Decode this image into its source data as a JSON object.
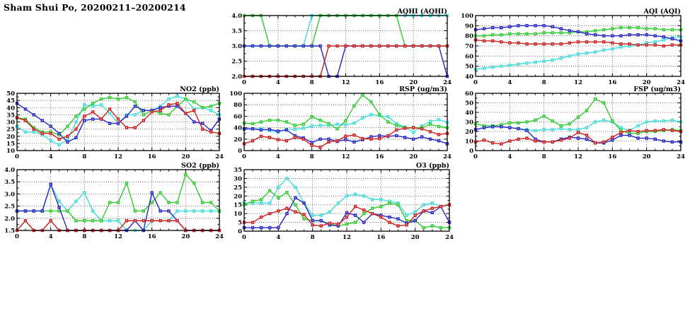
{
  "page_title": "Sham Shui Po, 20200211–20200214",
  "palette": {
    "blue": "#2828c8",
    "red": "#cc2222",
    "green": "#33cc33",
    "cyan": "#44dddd"
  },
  "chart_data": [
    {
      "id": "aqhi",
      "type": "line",
      "title": "AQHI (AQHI)",
      "ylim": [
        2.0,
        4.0
      ],
      "yticks": [
        2.0,
        2.5,
        3.0,
        3.5,
        4.0
      ],
      "ytick_labels": [
        "2.0",
        "2.5",
        "3.0",
        "3.5",
        "4.0"
      ],
      "xticks": [
        0,
        4,
        8,
        12,
        16,
        20,
        24
      ],
      "x_unit": "hour",
      "grid": true,
      "legend": "none",
      "series": [
        {
          "name": "cyan",
          "values": [
            3,
            3,
            3,
            3,
            3,
            3,
            3,
            3,
            4,
            4,
            4,
            4,
            4,
            4,
            4,
            4,
            4,
            4,
            4,
            4,
            4,
            4,
            4,
            4,
            4
          ]
        },
        {
          "name": "green",
          "values": [
            4,
            4,
            4,
            3,
            3,
            3,
            3,
            3,
            3,
            4,
            4,
            4,
            4,
            4,
            4,
            4,
            4,
            4,
            4,
            3,
            3,
            3,
            3,
            3,
            3
          ]
        },
        {
          "name": "blue",
          "values": [
            3,
            3,
            3,
            3,
            3,
            3,
            3,
            3,
            3,
            3,
            2,
            2,
            3,
            3,
            3,
            3,
            3,
            3,
            3,
            3,
            3,
            3,
            3,
            3,
            2
          ]
        },
        {
          "name": "red",
          "values": [
            2,
            2,
            2,
            2,
            2,
            2,
            2,
            2,
            2,
            2,
            3,
            3,
            3,
            3,
            3,
            3,
            3,
            3,
            3,
            3,
            3,
            3,
            3,
            3,
            3
          ]
        }
      ]
    },
    {
      "id": "aqi",
      "type": "line",
      "title": "AQI (AQI)",
      "ylim": [
        40,
        100
      ],
      "yticks": [
        40,
        50,
        60,
        70,
        80,
        90,
        100
      ],
      "ytick_labels": [
        "40",
        "50",
        "60",
        "70",
        "80",
        "90",
        "100"
      ],
      "xticks": [
        0,
        4,
        8,
        12,
        16,
        20,
        24
      ],
      "x_unit": "hour",
      "grid": true,
      "legend": "none",
      "series": [
        {
          "name": "cyan",
          "values": [
            47,
            48,
            49,
            50,
            51,
            52,
            53,
            54,
            55,
            56,
            58,
            60,
            62,
            63,
            64,
            66,
            67,
            69,
            70,
            71,
            73,
            74,
            76,
            78,
            79
          ]
        },
        {
          "name": "green",
          "values": [
            80,
            80,
            81,
            81,
            82,
            82,
            82,
            82,
            83,
            83,
            83,
            83,
            84,
            84,
            85,
            86,
            87,
            88,
            88,
            88,
            87,
            87,
            86,
            86,
            86
          ]
        },
        {
          "name": "blue",
          "values": [
            86,
            87,
            88,
            88,
            89,
            90,
            90,
            90,
            90,
            89,
            87,
            85,
            84,
            82,
            81,
            80,
            80,
            80,
            81,
            81,
            81,
            80,
            79,
            77,
            75
          ]
        },
        {
          "name": "red",
          "values": [
            76,
            75,
            75,
            74,
            73,
            73,
            72,
            72,
            72,
            72,
            72,
            73,
            74,
            74,
            74,
            74,
            73,
            72,
            72,
            71,
            71,
            71,
            70,
            71,
            71
          ]
        }
      ]
    },
    {
      "id": "no2",
      "type": "line",
      "title": "NO2 (ppb)",
      "ylim": [
        10,
        50
      ],
      "yticks": [
        10,
        15,
        20,
        25,
        30,
        35,
        40,
        45,
        50
      ],
      "ytick_labels": [
        "10",
        "15",
        "20",
        "25",
        "30",
        "35",
        "40",
        "45",
        "50"
      ],
      "xticks": [
        0,
        4,
        8,
        12,
        16,
        20,
        24
      ],
      "x_unit": "hour",
      "grid": true,
      "legend": "none",
      "series": [
        {
          "name": "cyan",
          "values": [
            27,
            23,
            23,
            21,
            17,
            14,
            18,
            30,
            42,
            41,
            42,
            36,
            29,
            35,
            35,
            38,
            38,
            41,
            46,
            48,
            46,
            39,
            40,
            38,
            35
          ]
        },
        {
          "name": "green",
          "values": [
            33,
            32,
            26,
            23,
            23,
            21,
            27,
            34,
            39,
            43,
            46,
            47,
            46,
            47,
            44,
            35,
            38,
            36,
            35,
            41,
            46,
            44,
            40,
            41,
            43
          ]
        },
        {
          "name": "blue",
          "values": [
            43,
            39,
            35,
            31,
            27,
            22,
            16,
            19,
            31,
            32,
            32,
            29,
            29,
            34,
            41,
            38,
            38,
            40,
            41,
            41,
            36,
            30,
            29,
            24,
            32
          ]
        },
        {
          "name": "red",
          "values": [
            33,
            31,
            25,
            22,
            22,
            18,
            20,
            25,
            34,
            37,
            32,
            39,
            32,
            26,
            26,
            31,
            37,
            38,
            42,
            43,
            36,
            38,
            25,
            23,
            22
          ]
        }
      ]
    },
    {
      "id": "rsp",
      "type": "line",
      "title": "RSP (ug/m3)",
      "ylim": [
        0,
        100
      ],
      "yticks": [
        0,
        20,
        40,
        60,
        80,
        100
      ],
      "ytick_labels": [
        "0",
        "20",
        "40",
        "60",
        "80",
        "100"
      ],
      "xticks": [
        0,
        4,
        8,
        12,
        16,
        20,
        24
      ],
      "x_unit": "hour",
      "grid": true,
      "legend": "none",
      "series": [
        {
          "name": "cyan",
          "values": [
            37,
            38,
            38,
            35,
            32,
            37,
            37,
            39,
            43,
            44,
            44,
            46,
            45,
            48,
            57,
            63,
            61,
            59,
            47,
            41,
            32,
            43,
            51,
            54,
            49
          ]
        },
        {
          "name": "green",
          "values": [
            48,
            47,
            50,
            53,
            53,
            50,
            44,
            46,
            59,
            53,
            47,
            38,
            52,
            78,
            97,
            85,
            63,
            50,
            44,
            40,
            40,
            40,
            46,
            42,
            40
          ]
        },
        {
          "name": "blue",
          "values": [
            38,
            38,
            36,
            37,
            34,
            36,
            26,
            22,
            14,
            20,
            20,
            16,
            19,
            15,
            19,
            24,
            26,
            25,
            26,
            23,
            20,
            24,
            20,
            17,
            12
          ]
        },
        {
          "name": "red",
          "values": [
            12,
            17,
            25,
            23,
            19,
            17,
            23,
            20,
            9,
            6,
            15,
            17,
            25,
            27,
            21,
            20,
            21,
            26,
            36,
            39,
            40,
            38,
            33,
            28,
            30
          ]
        }
      ]
    },
    {
      "id": "fsp",
      "type": "line",
      "title": "FSP (ug/m3)",
      "ylim": [
        0,
        60
      ],
      "yticks": [
        0,
        10,
        20,
        30,
        40,
        50,
        60
      ],
      "ytick_labels": [
        "0",
        "10",
        "20",
        "30",
        "40",
        "50",
        "60"
      ],
      "xticks": [
        0,
        4,
        8,
        12,
        16,
        20,
        24
      ],
      "x_unit": "hour",
      "grid": true,
      "legend": "none",
      "series": [
        {
          "name": "cyan",
          "values": [
            22,
            24,
            25,
            25,
            24,
            23,
            22,
            21,
            22,
            22,
            23,
            22,
            22,
            24,
            30,
            32,
            30,
            24,
            21,
            26,
            30,
            31,
            31,
            32,
            30
          ]
        },
        {
          "name": "green",
          "values": [
            28,
            26,
            26,
            27,
            29,
            29,
            30,
            32,
            36,
            31,
            26,
            28,
            35,
            42,
            54,
            50,
            31,
            21,
            18,
            18,
            20,
            20,
            21,
            22,
            21
          ]
        },
        {
          "name": "blue",
          "values": [
            22,
            24,
            25,
            25,
            24,
            23,
            21,
            12,
            9,
            9,
            12,
            14,
            13,
            12,
            8,
            8,
            11,
            16,
            16,
            13,
            13,
            12,
            10,
            9,
            9
          ]
        },
        {
          "name": "red",
          "values": [
            9,
            11,
            8,
            7,
            10,
            12,
            13,
            10,
            9,
            9,
            11,
            13,
            19,
            16,
            8,
            9,
            14,
            19,
            21,
            20,
            21,
            21,
            22,
            21,
            20
          ]
        }
      ]
    },
    {
      "id": "so2",
      "type": "line",
      "title": "SO2 (ppb)",
      "ylim": [
        1.5,
        4.0
      ],
      "yticks": [
        1.5,
        2.0,
        2.5,
        3.0,
        3.5,
        4.0
      ],
      "ytick_labels": [
        "1.5",
        "2.0",
        "2.5",
        "3.0",
        "3.5",
        "4.0"
      ],
      "xticks": [
        0,
        4,
        8,
        12,
        16,
        20,
        24
      ],
      "x_unit": "hour",
      "grid": true,
      "legend": "none",
      "series": [
        {
          "name": "cyan",
          "values": [
            2.3,
            2.3,
            2.3,
            2.3,
            3.4,
            2.7,
            2.3,
            2.7,
            3.05,
            2.3,
            1.9,
            1.9,
            1.9,
            1.5,
            1.5,
            1.5,
            1.9,
            1.9,
            1.9,
            2.3,
            2.3,
            2.3,
            2.3,
            2.3,
            2.3
          ]
        },
        {
          "name": "green",
          "values": [
            2.3,
            2.3,
            2.3,
            2.3,
            2.3,
            2.3,
            2.3,
            1.9,
            1.9,
            1.9,
            1.9,
            2.65,
            2.65,
            3.45,
            2.3,
            2.3,
            2.65,
            3.05,
            2.65,
            2.65,
            3.8,
            3.45,
            2.65,
            2.65,
            2.3
          ]
        },
        {
          "name": "blue",
          "values": [
            2.3,
            2.3,
            2.3,
            2.3,
            3.4,
            2.45,
            1.5,
            1.5,
            1.5,
            1.5,
            1.5,
            1.5,
            1.5,
            1.5,
            1.9,
            1.5,
            3.05,
            2.3,
            2.3,
            1.9,
            1.5,
            1.5,
            1.5,
            1.5,
            1.5
          ]
        },
        {
          "name": "red",
          "values": [
            1.5,
            1.9,
            1.5,
            1.5,
            1.9,
            1.5,
            1.5,
            1.5,
            1.5,
            1.5,
            1.5,
            1.5,
            1.5,
            1.9,
            1.9,
            1.9,
            1.9,
            1.9,
            1.9,
            1.9,
            1.5,
            1.5,
            1.5,
            1.5,
            1.5
          ]
        }
      ]
    },
    {
      "id": "o3",
      "type": "line",
      "title": "O3 (ppb)",
      "ylim": [
        0,
        35
      ],
      "yticks": [
        0,
        5,
        10,
        15,
        20,
        25,
        30,
        35
      ],
      "ytick_labels": [
        "0",
        "5",
        "10",
        "15",
        "20",
        "25",
        "30",
        "35"
      ],
      "xticks": [
        0,
        4,
        8,
        12,
        16,
        20,
        24
      ],
      "x_unit": "hour",
      "grid": true,
      "legend": "none",
      "series": [
        {
          "name": "cyan",
          "values": [
            16,
            16,
            16,
            16,
            25,
            30,
            25,
            16,
            9,
            9,
            11,
            16,
            20,
            21,
            20,
            18,
            18,
            17,
            16,
            9,
            11,
            15,
            16,
            14,
            15
          ]
        },
        {
          "name": "green",
          "values": [
            15,
            17,
            18,
            23,
            19,
            22,
            15,
            7,
            6,
            6,
            4,
            3,
            4,
            5,
            10,
            13,
            14,
            16,
            15,
            6,
            6,
            2,
            3,
            2,
            2
          ]
        },
        {
          "name": "blue",
          "values": [
            2,
            2,
            2,
            2,
            2,
            10,
            19,
            16,
            6,
            6,
            3.5,
            3,
            10.5,
            9,
            5,
            10,
            9,
            8,
            7,
            4.5,
            6,
            11.5,
            10.5,
            14,
            5
          ]
        },
        {
          "name": "red",
          "values": [
            5,
            5,
            8,
            10,
            11.5,
            13,
            11,
            9.5,
            3.5,
            3,
            4.5,
            4,
            8,
            14,
            12,
            10,
            8,
            5,
            3,
            3.5,
            9,
            11.5,
            13,
            14,
            15
          ]
        }
      ]
    }
  ]
}
